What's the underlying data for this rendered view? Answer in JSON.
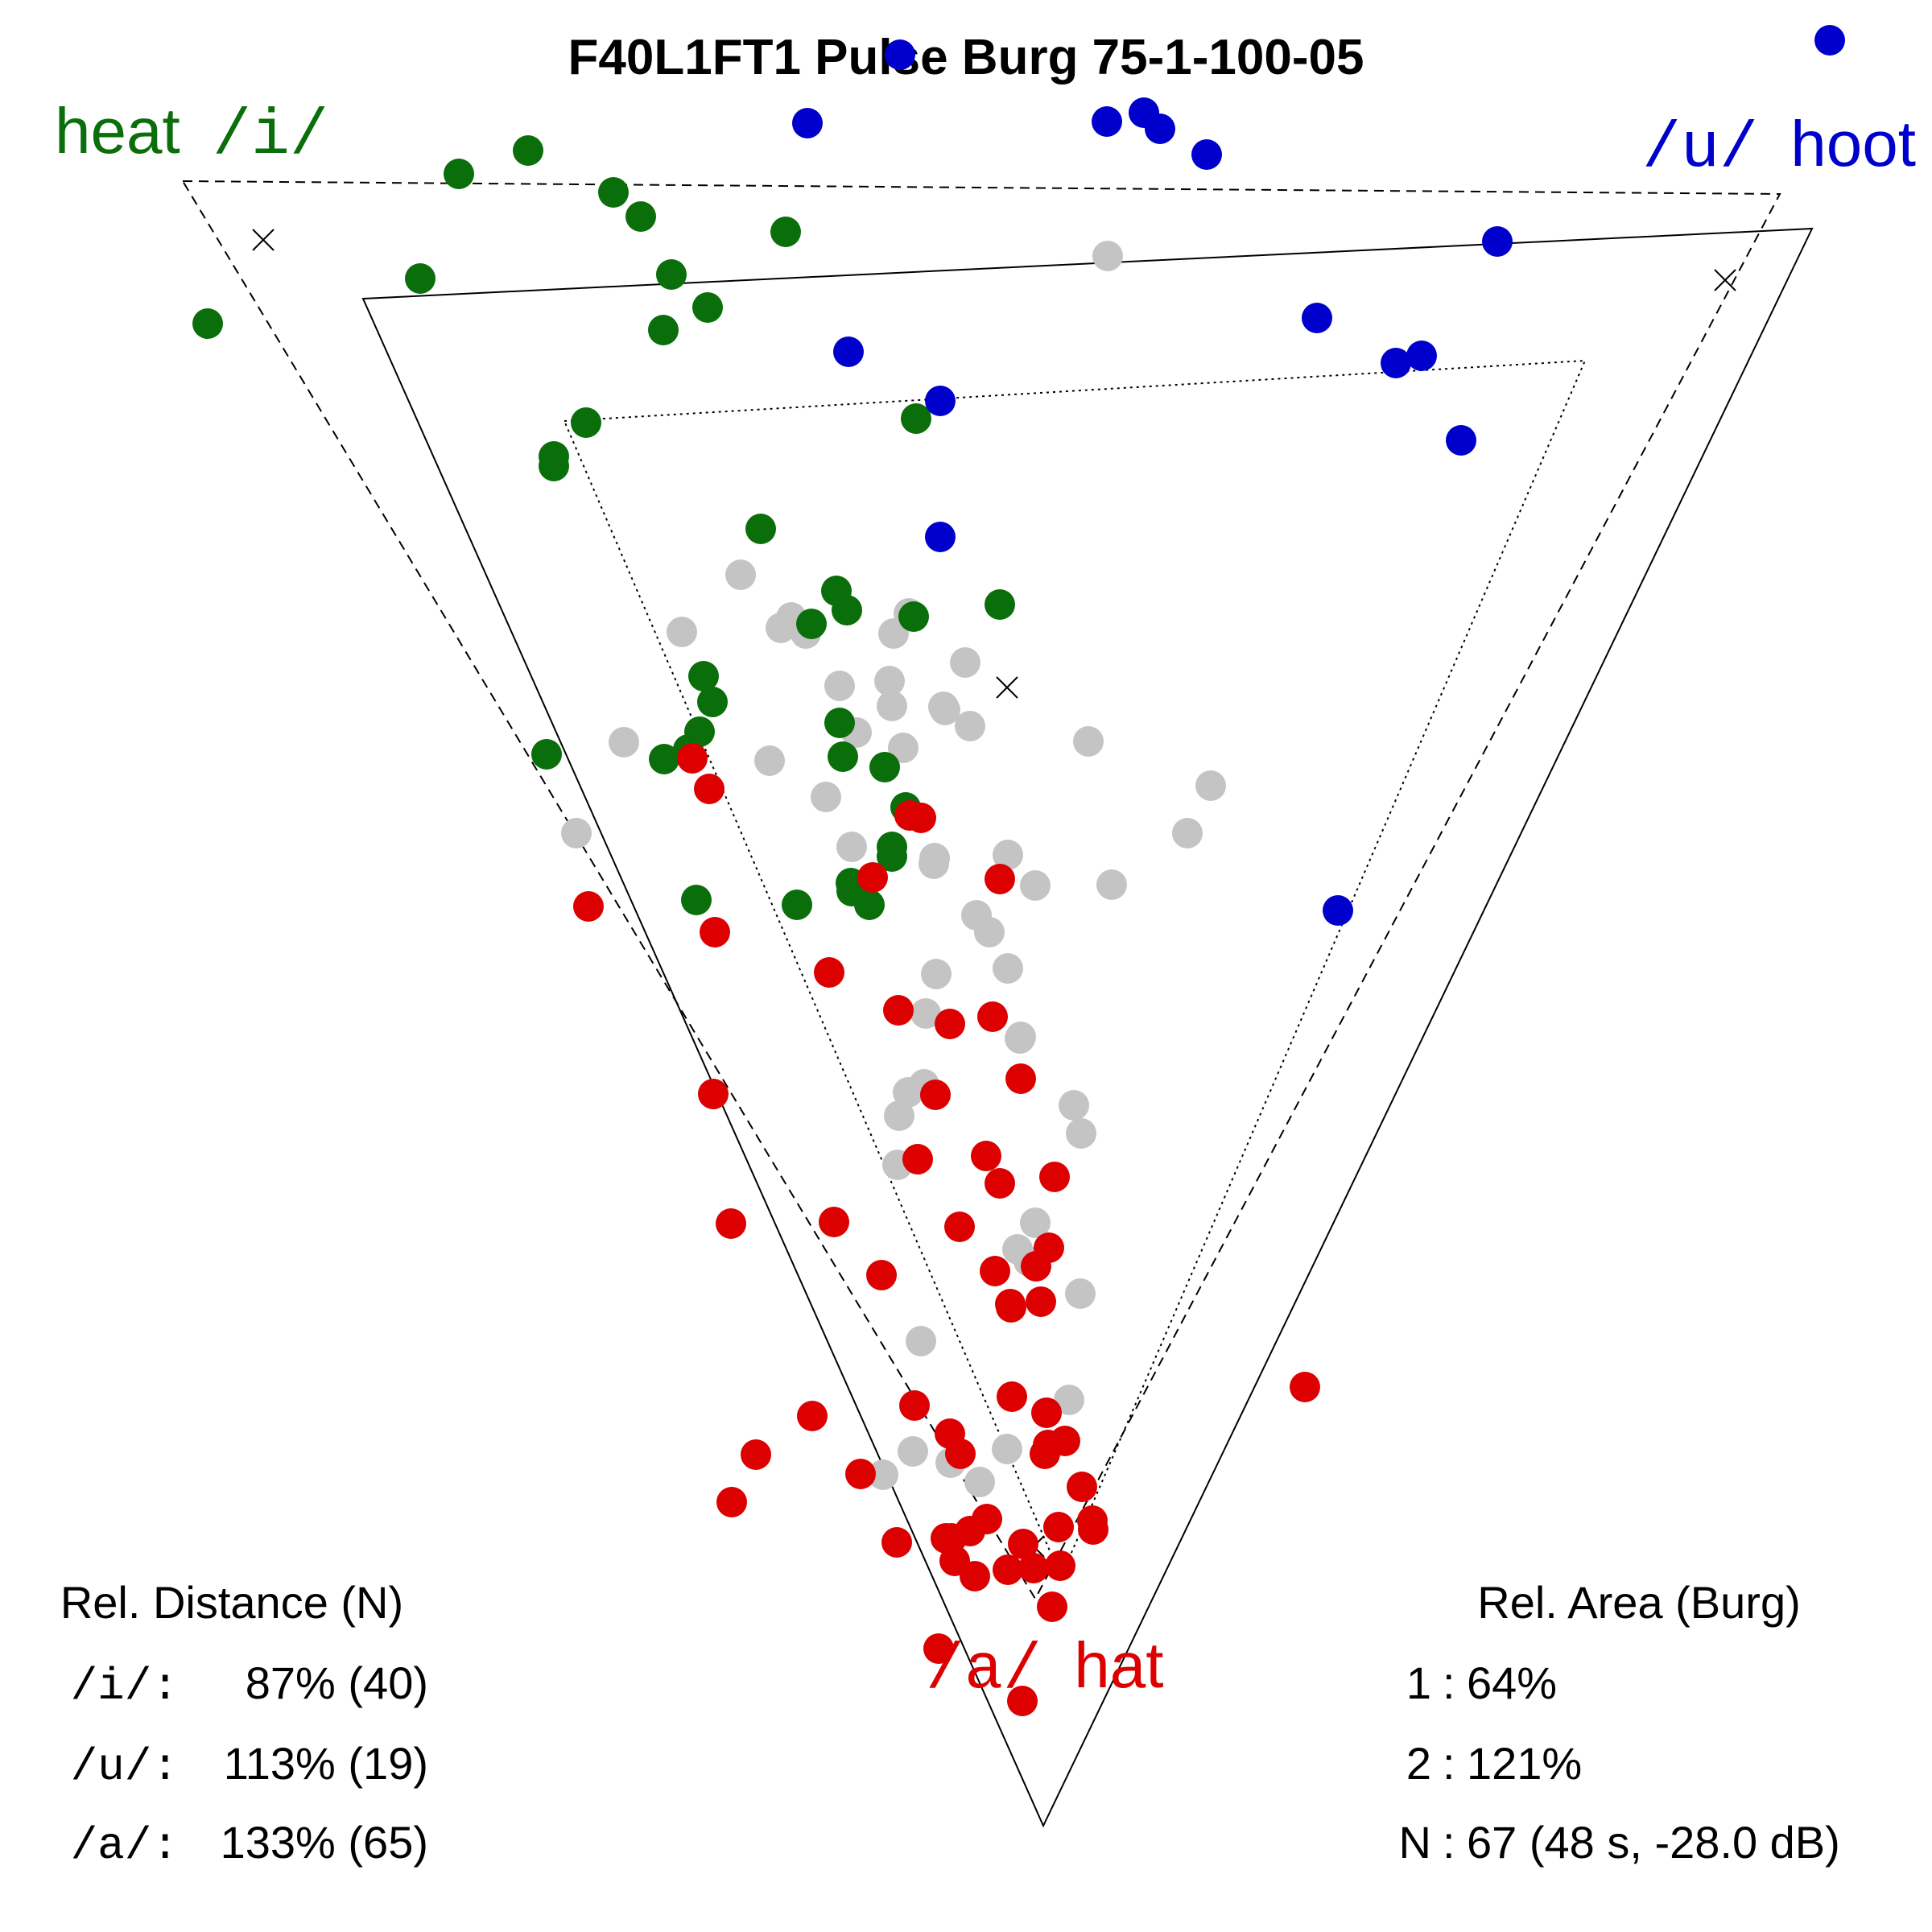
{
  "title": "F40L1FT1 Pulse Burg 75-1-100-05",
  "colors": {
    "i": "#0a6e0a",
    "u": "#0000cc",
    "a": "#dd0000",
    "other": "#c4c4c4"
  },
  "vowel_labels": {
    "i": {
      "word": "heat",
      "symbol": "/i/"
    },
    "u": {
      "symbol": "/u/",
      "word": "hoot"
    },
    "a": {
      "symbol": "/a/",
      "word": "hat"
    }
  },
  "rel_distance": {
    "heading": "Rel. Distance (N)",
    "rows": [
      {
        "label": "/i/:",
        "value": "87% (40)"
      },
      {
        "label": "/u/:",
        "value": "113% (19)"
      },
      {
        "label": "/a/:",
        "value": "133% (65)"
      }
    ]
  },
  "rel_area": {
    "heading": "Rel. Area (Burg)",
    "rows": [
      {
        "label": "1",
        "sep": ":",
        "value": "64%"
      },
      {
        "label": "2",
        "sep": ":",
        "value": "121%"
      },
      {
        "label": "N",
        "sep": ":",
        "value": "67 (48 s, -28.0 dB)"
      }
    ]
  },
  "chart_data": {
    "type": "scatter",
    "title": "F40L1FT1 Pulse Burg 75-1-100-05",
    "xlabel": "",
    "ylabel": "",
    "xlim": [
      0,
      2400
    ],
    "ylim": [
      0,
      2400
    ],
    "grid": false,
    "triangles": [
      {
        "name": "solid",
        "style": "solid",
        "points": [
          [
            451,
            371
          ],
          [
            2251,
            284
          ],
          [
            1296,
            2268
          ]
        ]
      },
      {
        "name": "dashed",
        "style": "dashed",
        "points": [
          [
            227,
            225
          ],
          [
            2211,
            241
          ],
          [
            1286,
            1986
          ]
        ]
      },
      {
        "name": "dotted",
        "style": "dotted",
        "points": [
          [
            701,
            523
          ],
          [
            1969,
            448
          ],
          [
            1318,
            1959
          ]
        ]
      }
    ],
    "crosses": [
      [
        327,
        298
      ],
      [
        2143,
        348
      ],
      [
        1251,
        854
      ],
      [
        1284,
        1921
      ]
    ],
    "series": [
      {
        "name": "/i/",
        "points": [
          [
            258,
            402
          ],
          [
            522,
            346
          ],
          [
            570,
            216
          ],
          [
            656,
            187
          ],
          [
            762,
            239
          ],
          [
            796,
            269
          ],
          [
            834,
            341
          ],
          [
            879,
            382
          ],
          [
            824,
            410
          ],
          [
            976,
            288
          ],
          [
            728,
            525
          ],
          [
            688,
            567
          ],
          [
            688,
            579
          ],
          [
            1138,
            520
          ],
          [
            945,
            657
          ],
          [
            1039,
            734
          ],
          [
            1052,
            758
          ],
          [
            1008,
            775
          ],
          [
            1135,
            766
          ],
          [
            1242,
            751
          ],
          [
            874,
            840
          ],
          [
            885,
            872
          ],
          [
            869,
            909
          ],
          [
            855,
            931
          ],
          [
            679,
            937
          ],
          [
            825,
            943
          ],
          [
            1043,
            898
          ],
          [
            1047,
            940
          ],
          [
            1099,
            953
          ],
          [
            1125,
            1003
          ],
          [
            1108,
            1052
          ],
          [
            1108,
            1064
          ],
          [
            1057,
            1097
          ],
          [
            1058,
            1107
          ],
          [
            865,
            1118
          ],
          [
            990,
            1124
          ],
          [
            1080,
            1124
          ]
        ]
      },
      {
        "name": "/u/",
        "points": [
          [
            1118,
            68
          ],
          [
            2273,
            50
          ],
          [
            1003,
            153
          ],
          [
            1375,
            151
          ],
          [
            1421,
            140
          ],
          [
            1441,
            160
          ],
          [
            1499,
            192
          ],
          [
            1860,
            300
          ],
          [
            1636,
            395
          ],
          [
            1734,
            451
          ],
          [
            1766,
            442
          ],
          [
            1815,
            547
          ],
          [
            1054,
            437
          ],
          [
            1168,
            498
          ],
          [
            1168,
            667
          ],
          [
            1662,
            1131
          ]
        ]
      },
      {
        "name": "/a/",
        "points": [
          [
            860,
            942
          ],
          [
            881,
            980
          ],
          [
            1130,
            1013
          ],
          [
            1144,
            1016
          ],
          [
            1084,
            1090
          ],
          [
            1242,
            1092
          ],
          [
            731,
            1126
          ],
          [
            888,
            1158
          ],
          [
            1030,
            1208
          ],
          [
            1116,
            1255
          ],
          [
            1180,
            1272
          ],
          [
            1233,
            1263
          ],
          [
            1268,
            1340
          ],
          [
            886,
            1359
          ],
          [
            1162,
            1360
          ],
          [
            1140,
            1440
          ],
          [
            1225,
            1436
          ],
          [
            1242,
            1470
          ],
          [
            1310,
            1462
          ],
          [
            908,
            1520
          ],
          [
            1036,
            1518
          ],
          [
            1192,
            1524
          ],
          [
            1095,
            1584
          ],
          [
            1236,
            1579
          ],
          [
            1287,
            1573
          ],
          [
            1303,
            1550
          ],
          [
            1255,
            1620
          ],
          [
            1256,
            1624
          ],
          [
            1293,
            1617
          ],
          [
            1621,
            1723
          ],
          [
            1136,
            1746
          ],
          [
            1257,
            1735
          ],
          [
            1300,
            1755
          ],
          [
            1009,
            1759
          ],
          [
            1180,
            1781
          ],
          [
            1193,
            1806
          ],
          [
            1302,
            1795
          ],
          [
            1323,
            1790
          ],
          [
            1298,
            1806
          ],
          [
            939,
            1807
          ],
          [
            1069,
            1831
          ],
          [
            909,
            1866
          ],
          [
            1344,
            1847
          ],
          [
            1226,
            1887
          ],
          [
            1205,
            1902
          ],
          [
            1182,
            1911
          ],
          [
            1175,
            1911
          ],
          [
            1114,
            1916
          ],
          [
            1271,
            1918
          ],
          [
            1315,
            1897
          ],
          [
            1357,
            1889
          ],
          [
            1358,
            1900
          ],
          [
            1186,
            1939
          ],
          [
            1211,
            1958
          ],
          [
            1252,
            1950
          ],
          [
            1284,
            1948
          ],
          [
            1317,
            1945
          ],
          [
            1166,
            2048
          ],
          [
            1307,
            1996
          ],
          [
            1270,
            2113
          ]
        ]
      },
      {
        "name": "other",
        "points": [
          [
            1376,
            318
          ],
          [
            920,
            714
          ],
          [
            847,
            785
          ],
          [
            970,
            780
          ],
          [
            983,
            767
          ],
          [
            1001,
            787
          ],
          [
            1110,
            787
          ],
          [
            1129,
            762
          ],
          [
            1199,
            823
          ],
          [
            1043,
            852
          ],
          [
            1105,
            846
          ],
          [
            1108,
            877
          ],
          [
            1172,
            878
          ],
          [
            1174,
            882
          ],
          [
            1205,
            902
          ],
          [
            1064,
            910
          ],
          [
            1122,
            929
          ],
          [
            775,
            922
          ],
          [
            956,
            945
          ],
          [
            1352,
            921
          ],
          [
            1504,
            976
          ],
          [
            1475,
            1035
          ],
          [
            1026,
            990
          ],
          [
            1058,
            1052
          ],
          [
            1161,
            1066
          ],
          [
            1252,
            1062
          ],
          [
            1160,
            1073
          ],
          [
            716,
            1035
          ],
          [
            1286,
            1100
          ],
          [
            1381,
            1099
          ],
          [
            1213,
            1137
          ],
          [
            1229,
            1158
          ],
          [
            1163,
            1210
          ],
          [
            1252,
            1203
          ],
          [
            1268,
            1288
          ],
          [
            1267,
            1290
          ],
          [
            1150,
            1259
          ],
          [
            1148,
            1347
          ],
          [
            1334,
            1373
          ],
          [
            1343,
            1408
          ],
          [
            1117,
            1386
          ],
          [
            1128,
            1357
          ],
          [
            1115,
            1447
          ],
          [
            1286,
            1519
          ],
          [
            1264,
            1552
          ],
          [
            1278,
            1567
          ],
          [
            1342,
            1607
          ],
          [
            1144,
            1666
          ],
          [
            1328,
            1739
          ],
          [
            1134,
            1803
          ],
          [
            1181,
            1817
          ],
          [
            1251,
            1800
          ],
          [
            1097,
            1832
          ],
          [
            1217,
            1841
          ]
        ]
      }
    ]
  }
}
